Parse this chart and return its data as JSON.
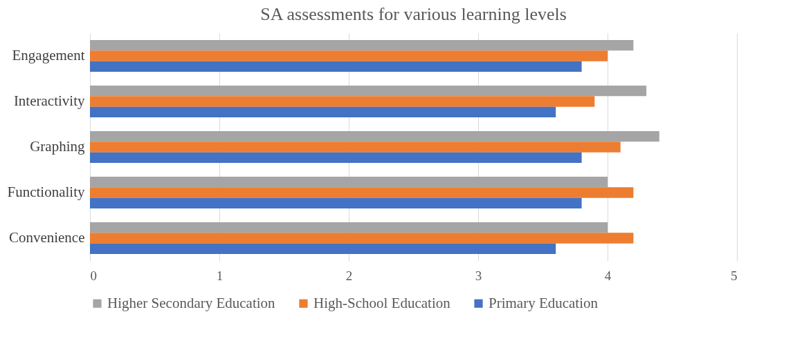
{
  "chart_data": {
    "type": "bar",
    "orientation": "horizontal",
    "title": "SA assessments  for various  learning  levels",
    "categories": [
      "Engagement",
      "Interactivity",
      "Graphing",
      "Functionality",
      "Convenience"
    ],
    "series": [
      {
        "name": "Higher Secondary Education",
        "color": "#a5a5a5",
        "values": [
          4.2,
          4.3,
          4.4,
          4.0,
          4.0
        ]
      },
      {
        "name": "High-School Education",
        "color": "#ed7d31",
        "values": [
          4.0,
          3.9,
          4.1,
          4.2,
          4.2
        ]
      },
      {
        "name": "Primary Education",
        "color": "#4472c4",
        "values": [
          3.8,
          3.6,
          3.8,
          3.8,
          3.6
        ]
      }
    ],
    "xlim": [
      0,
      5
    ],
    "xticks": [
      0,
      1,
      2,
      3,
      4,
      5
    ],
    "grid": "x",
    "legend": "bottom"
  }
}
